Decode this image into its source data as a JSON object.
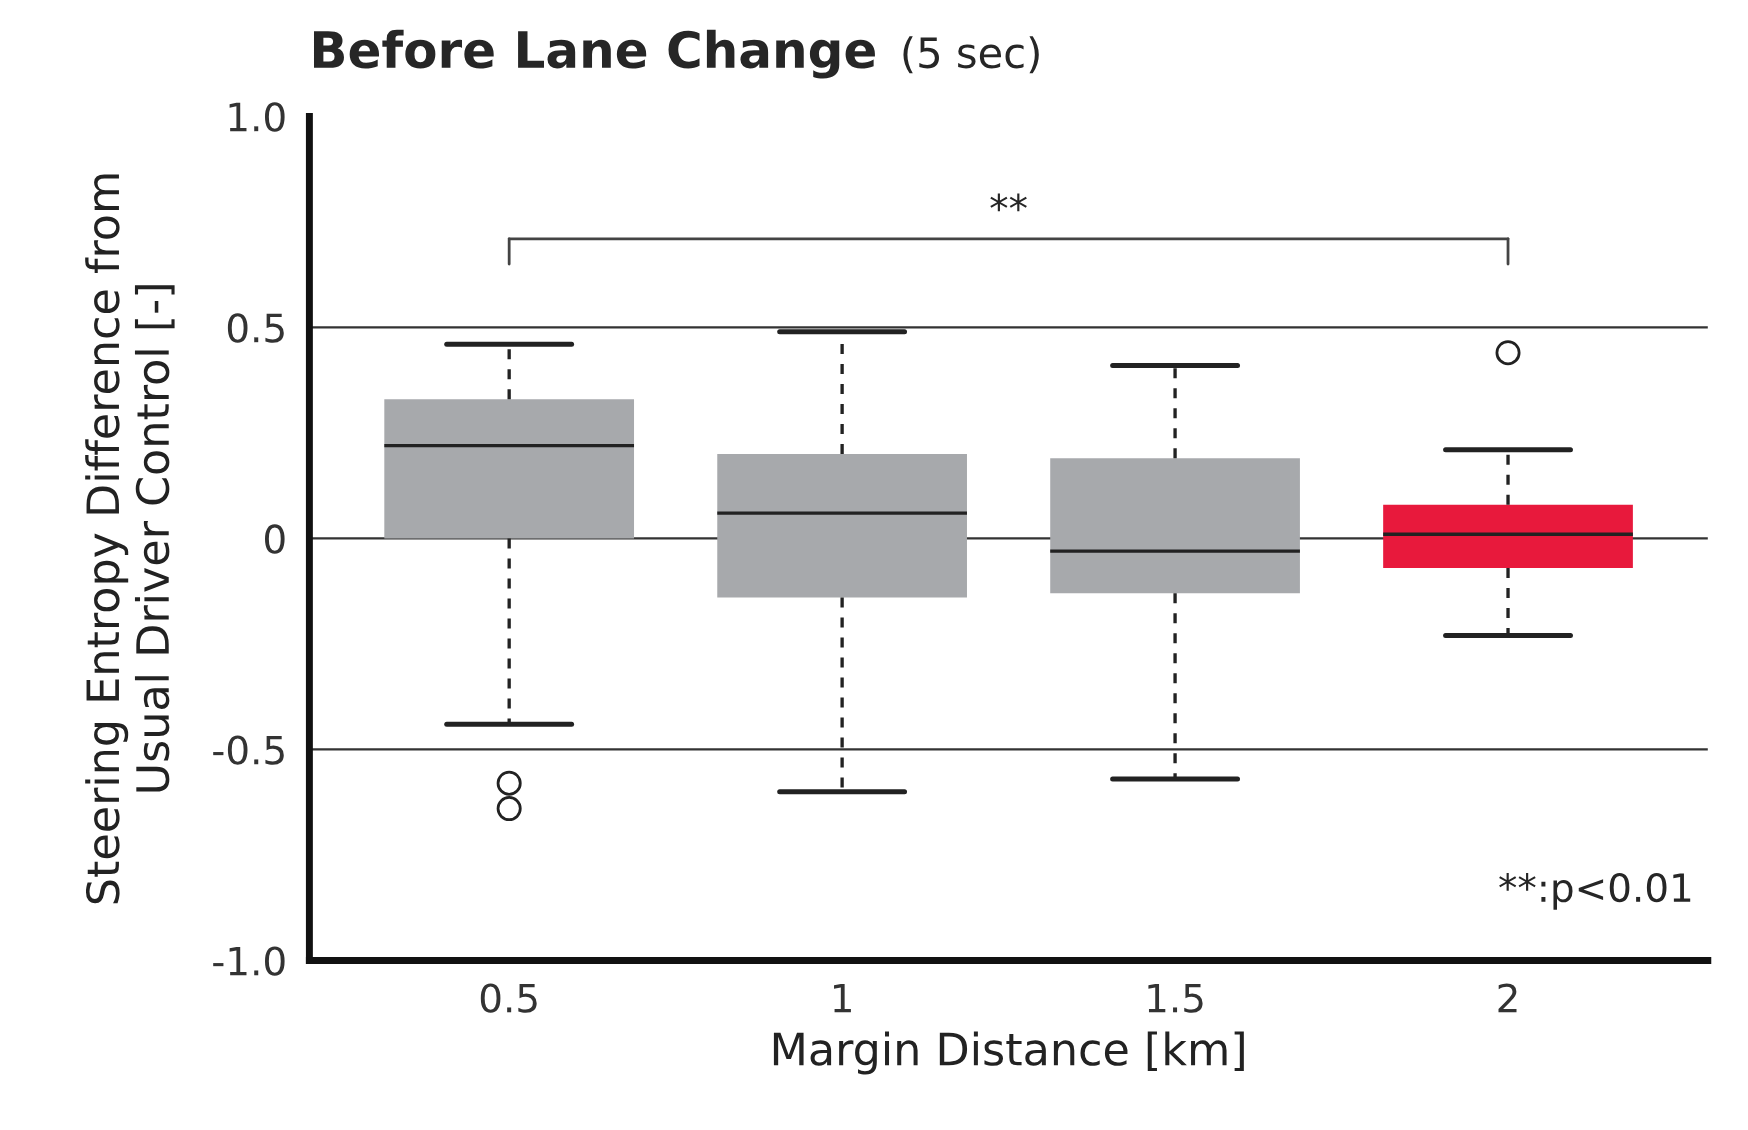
{
  "chart_data": {
    "type": "box",
    "title": "Before Lane Change",
    "subtitle": "(5 sec)",
    "xlabel": "Margin Distance [km]",
    "ylabel": "Steering Entropy Difference from\nUsual Driver Control [-]",
    "categories": [
      "0.5",
      "1",
      "1.5",
      "2"
    ],
    "colors": [
      "#a7a9ac",
      "#a7a9ac",
      "#a7a9ac",
      "#e8193c"
    ],
    "boxes": [
      {
        "low": -0.44,
        "q1": 0.0,
        "median": 0.22,
        "q3": 0.33,
        "high": 0.46,
        "outliers": [
          -0.58,
          -0.64
        ]
      },
      {
        "low": -0.6,
        "q1": -0.14,
        "median": 0.06,
        "q3": 0.2,
        "high": 0.49
      },
      {
        "low": -0.57,
        "q1": -0.13,
        "median": -0.03,
        "q3": 0.19,
        "high": 0.41
      },
      {
        "low": -0.23,
        "q1": -0.07,
        "median": 0.01,
        "q3": 0.08,
        "high": 0.21,
        "outliers": [
          0.44
        ]
      }
    ],
    "ylim": [
      -1.0,
      1.0
    ],
    "yticks": [
      {
        "value": -1.0,
        "label": "-1.0"
      },
      {
        "value": -0.5,
        "label": "-0.5"
      },
      0,
      {
        "value": 0.5,
        "label": "0.5"
      },
      {
        "value": 1.0,
        "label": "1.0"
      }
    ],
    "grid": "y",
    "annotations": [
      "**",
      "**:p<0.01"
    ]
  }
}
